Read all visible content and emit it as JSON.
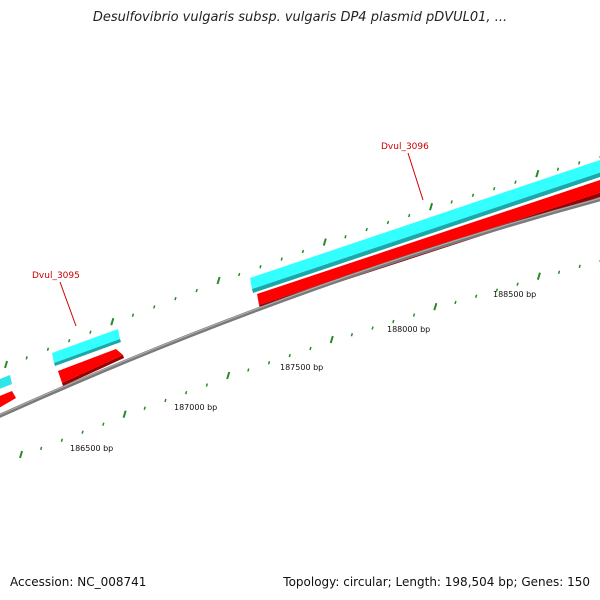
{
  "title": "Desulfovibrio vulgaris subsp. vulgaris DP4 plasmid pDVUL01, ...",
  "footer": {
    "accession": "Accession: NC_008741",
    "summary": "Topology: circular; Length: 198,504 bp; Genes: 150"
  },
  "colors": {
    "backbone": "#808080",
    "gene_forward": "#33ffff",
    "gene_reverse": "#ff0000",
    "ticks": "#2a8a2a",
    "gene_label": "#cc0000"
  },
  "gene_labels": [
    {
      "name": "Dvul_3095"
    },
    {
      "name": "Dvul_3096"
    }
  ],
  "scale_labels": [
    {
      "text": "186500 bp"
    },
    {
      "text": "187000 bp"
    },
    {
      "text": "187500 bp"
    },
    {
      "text": "188000 bp"
    },
    {
      "text": "188500 bp"
    }
  ]
}
